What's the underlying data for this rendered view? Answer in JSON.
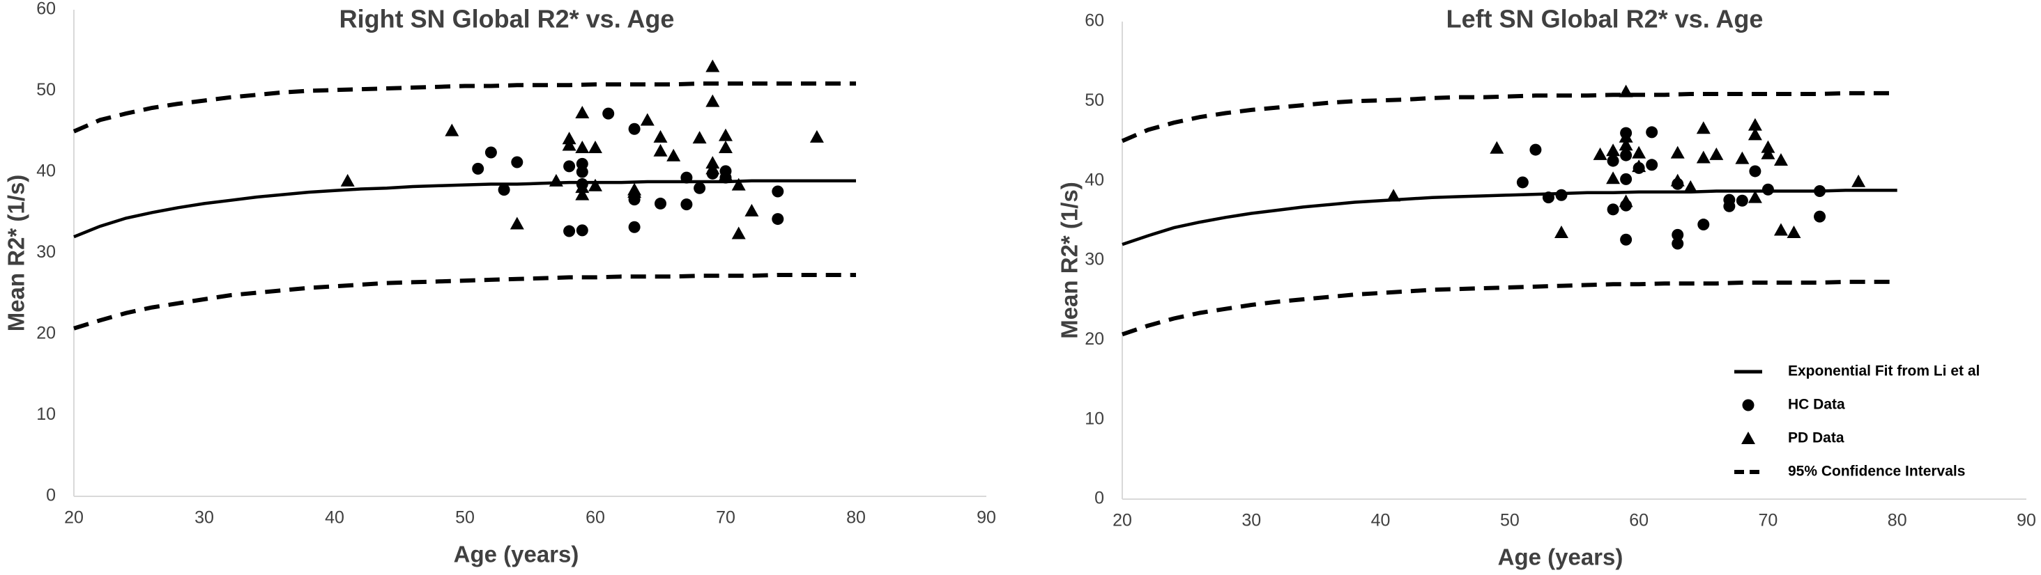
{
  "chart_data": [
    {
      "type": "scatter",
      "title": "Right SN Global R2* vs. Age",
      "xlabel": "Age (years)",
      "ylabel": "Mean R2* (1/s)",
      "xlim": [
        20,
        90
      ],
      "ylim": [
        0,
        60
      ],
      "xticks": [
        20,
        30,
        40,
        50,
        60,
        70,
        80,
        90
      ],
      "yticks": [
        0,
        10,
        20,
        30,
        40,
        50,
        60
      ],
      "grid": false,
      "legend": null,
      "series": [
        {
          "role": "fit",
          "x": [
            20,
            22,
            24,
            26,
            28,
            30,
            32,
            34,
            36,
            38,
            40,
            42,
            44,
            46,
            48,
            50,
            52,
            54,
            56,
            58,
            60,
            62,
            64,
            66,
            68,
            70,
            72,
            74,
            76,
            78,
            80
          ],
          "y": [
            32.0,
            33.3,
            34.3,
            35.0,
            35.6,
            36.1,
            36.5,
            36.9,
            37.2,
            37.5,
            37.7,
            37.9,
            38.0,
            38.2,
            38.3,
            38.4,
            38.5,
            38.5,
            38.6,
            38.7,
            38.7,
            38.7,
            38.8,
            38.8,
            38.8,
            38.8,
            38.9,
            38.9,
            38.9,
            38.9,
            38.9
          ]
        },
        {
          "role": "upper",
          "x": [
            20,
            22,
            24,
            26,
            28,
            30,
            32,
            34,
            36,
            38,
            40,
            42,
            44,
            46,
            48,
            50,
            52,
            54,
            56,
            58,
            60,
            62,
            64,
            66,
            68,
            70,
            72,
            74,
            76,
            78,
            80
          ],
          "y": [
            45.0,
            46.4,
            47.2,
            47.9,
            48.4,
            48.8,
            49.2,
            49.5,
            49.8,
            50.0,
            50.1,
            50.2,
            50.3,
            50.4,
            50.5,
            50.6,
            50.6,
            50.7,
            50.7,
            50.7,
            50.8,
            50.8,
            50.8,
            50.8,
            50.9,
            50.9,
            50.9,
            50.9,
            50.9,
            50.9,
            50.9
          ]
        },
        {
          "role": "lower",
          "x": [
            20,
            22,
            24,
            26,
            28,
            30,
            32,
            34,
            36,
            38,
            40,
            42,
            44,
            46,
            48,
            50,
            52,
            54,
            56,
            58,
            60,
            62,
            64,
            66,
            68,
            70,
            72,
            74,
            76,
            78,
            80
          ],
          "y": [
            20.7,
            21.7,
            22.6,
            23.3,
            23.8,
            24.3,
            24.8,
            25.1,
            25.4,
            25.7,
            25.9,
            26.1,
            26.3,
            26.4,
            26.5,
            26.6,
            26.7,
            26.8,
            26.9,
            27.0,
            27.0,
            27.1,
            27.1,
            27.1,
            27.2,
            27.2,
            27.2,
            27.3,
            27.3,
            27.3,
            27.3
          ]
        },
        {
          "role": "hc",
          "x": [
            51,
            52,
            53,
            54,
            58,
            58,
            59,
            59,
            59,
            59,
            61,
            63,
            63,
            63,
            65,
            67,
            67,
            68,
            69,
            70,
            70,
            74,
            74
          ],
          "y": [
            40.4,
            42.4,
            37.8,
            41.2,
            40.7,
            32.7,
            41.0,
            40.0,
            38.5,
            32.8,
            47.2,
            45.3,
            36.6,
            33.2,
            36.1,
            39.3,
            36.0,
            38.0,
            39.8,
            39.3,
            40.1,
            37.6,
            34.2
          ]
        },
        {
          "role": "pd",
          "x": [
            41,
            49,
            54,
            57,
            58,
            58,
            59,
            59,
            59,
            59,
            60,
            60,
            63,
            63,
            64,
            65,
            65,
            66,
            68,
            69,
            69,
            69,
            69,
            70,
            70,
            70,
            71,
            71,
            72,
            77
          ],
          "y": [
            38.9,
            45.1,
            33.6,
            38.9,
            44.1,
            43.3,
            47.3,
            43.0,
            38.1,
            37.2,
            43.0,
            38.3,
            37.8,
            37.5,
            46.4,
            44.3,
            42.6,
            42.0,
            44.2,
            53.0,
            48.7,
            41.1,
            40.4,
            44.5,
            43.0,
            39.6,
            38.4,
            32.4,
            35.2,
            44.3
          ]
        }
      ]
    },
    {
      "type": "scatter",
      "title": "Left SN Global R2* vs. Age",
      "xlabel": "Age (years)",
      "ylabel": "Mean R2* (1/s)",
      "xlim": [
        20,
        90
      ],
      "ylim": [
        0,
        60
      ],
      "xticks": [
        20,
        30,
        40,
        50,
        60,
        70,
        80,
        90
      ],
      "yticks": [
        0,
        10,
        20,
        30,
        40,
        50,
        60
      ],
      "grid": false,
      "legend": {
        "placement": "bottom-right",
        "entries": [
          {
            "label": "Exponential Fit from Li et al",
            "symbol": "solid-line"
          },
          {
            "label": "HC Data",
            "symbol": "circle"
          },
          {
            "label": "PD Data",
            "symbol": "triangle"
          },
          {
            "label": "95% Confidence Intervals",
            "symbol": "dashed-line"
          }
        ]
      },
      "series": [
        {
          "role": "fit",
          "x": [
            20,
            22,
            24,
            26,
            28,
            30,
            32,
            34,
            36,
            38,
            40,
            42,
            44,
            46,
            48,
            50,
            52,
            54,
            56,
            58,
            60,
            62,
            64,
            66,
            68,
            70,
            72,
            74,
            76,
            78,
            80
          ],
          "y": [
            32.0,
            33.1,
            34.1,
            34.8,
            35.4,
            35.9,
            36.3,
            36.7,
            37.0,
            37.3,
            37.5,
            37.7,
            37.9,
            38.0,
            38.1,
            38.2,
            38.3,
            38.4,
            38.5,
            38.5,
            38.6,
            38.6,
            38.6,
            38.7,
            38.7,
            38.7,
            38.7,
            38.7,
            38.8,
            38.8,
            38.8
          ]
        },
        {
          "role": "upper",
          "x": [
            20,
            22,
            24,
            26,
            28,
            30,
            32,
            34,
            36,
            38,
            40,
            42,
            44,
            46,
            48,
            50,
            52,
            54,
            56,
            58,
            60,
            62,
            64,
            66,
            68,
            70,
            72,
            74,
            76,
            78,
            80
          ],
          "y": [
            45.0,
            46.4,
            47.3,
            48.0,
            48.5,
            48.9,
            49.2,
            49.5,
            49.8,
            50.0,
            50.1,
            50.2,
            50.4,
            50.5,
            50.5,
            50.6,
            50.7,
            50.7,
            50.7,
            50.8,
            50.8,
            50.8,
            50.9,
            50.9,
            50.9,
            50.9,
            50.9,
            50.9,
            51.0,
            51.0,
            51.0
          ]
        },
        {
          "role": "lower",
          "x": [
            20,
            22,
            24,
            26,
            28,
            30,
            32,
            34,
            36,
            38,
            40,
            42,
            44,
            46,
            48,
            50,
            52,
            54,
            56,
            58,
            60,
            62,
            64,
            66,
            68,
            70,
            72,
            74,
            76,
            78,
            80
          ],
          "y": [
            20.7,
            21.8,
            22.7,
            23.4,
            23.9,
            24.4,
            24.8,
            25.1,
            25.4,
            25.7,
            25.9,
            26.1,
            26.3,
            26.4,
            26.5,
            26.6,
            26.7,
            26.8,
            26.9,
            27.0,
            27.0,
            27.1,
            27.1,
            27.1,
            27.2,
            27.2,
            27.2,
            27.2,
            27.3,
            27.3,
            27.3
          ]
        },
        {
          "role": "hc",
          "x": [
            51,
            52,
            53,
            54,
            58,
            58,
            59,
            59,
            59,
            59,
            59,
            61,
            61,
            63,
            63,
            63,
            65,
            67,
            67,
            68,
            69,
            70,
            74,
            74,
            60
          ],
          "y": [
            39.8,
            43.9,
            37.9,
            38.2,
            42.5,
            36.4,
            46.0,
            43.2,
            40.2,
            32.6,
            36.9,
            46.1,
            42.0,
            39.6,
            33.2,
            32.1,
            34.5,
            37.6,
            36.8,
            37.5,
            41.2,
            38.9,
            38.7,
            35.5,
            41.6
          ]
        },
        {
          "role": "pd",
          "x": [
            41,
            49,
            54,
            57,
            58,
            59,
            59,
            59,
            59,
            60,
            63,
            63,
            64,
            65,
            65,
            66,
            68,
            69,
            69,
            69,
            70,
            70,
            71,
            71,
            72,
            77,
            60,
            58
          ],
          "y": [
            38.1,
            44.1,
            33.5,
            43.3,
            40.3,
            51.2,
            45.5,
            44.5,
            37.4,
            43.5,
            40.0,
            43.5,
            39.2,
            46.6,
            42.9,
            43.3,
            42.8,
            47.0,
            45.8,
            37.9,
            44.2,
            43.4,
            42.6,
            33.8,
            33.5,
            39.9,
            41.8,
            43.8
          ]
        }
      ]
    }
  ]
}
